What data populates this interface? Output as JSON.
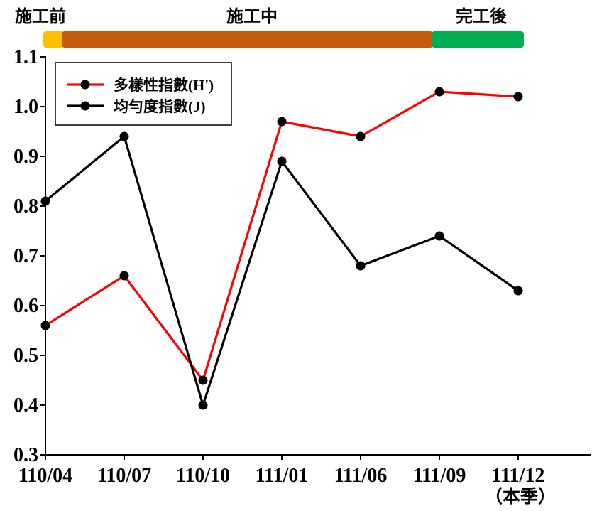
{
  "phase_bar": {
    "phases": [
      {
        "label": "施工前",
        "color": "#FFC000"
      },
      {
        "label": "施工中",
        "color": "#C55A11"
      },
      {
        "label": "完工後",
        "color": "#00B050"
      }
    ]
  },
  "chart_data": {
    "type": "line",
    "categories": [
      "110/04",
      "110/07",
      "110/10",
      "111/01",
      "111/06",
      "111/09",
      "111/12"
    ],
    "xtick_sublabels": [
      "",
      "",
      "",
      "",
      "",
      "",
      "（本季）"
    ],
    "ylim": [
      0.3,
      1.1
    ],
    "yticks": [
      "0.3",
      "0.4",
      "0.5",
      "0.6",
      "0.7",
      "0.8",
      "0.9",
      "1.0",
      "1.1"
    ],
    "grid": false,
    "legend": "top-left",
    "series": [
      {
        "name": "多樣性指數(H')",
        "color": "#FF0000",
        "marker_color": "#000000",
        "values": [
          0.56,
          0.66,
          0.45,
          0.97,
          0.94,
          1.03,
          1.02
        ]
      },
      {
        "name": "均勻度指數(J)",
        "color": "#000000",
        "marker_color": "#000000",
        "values": [
          0.81,
          0.94,
          0.4,
          0.89,
          0.68,
          0.74,
          0.63
        ]
      }
    ]
  }
}
